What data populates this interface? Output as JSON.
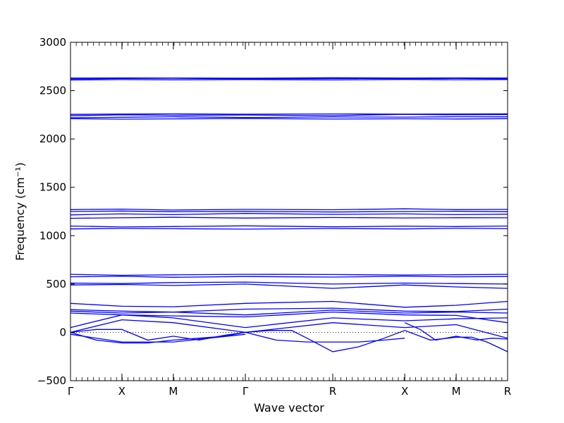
{
  "chart_data": {
    "type": "line",
    "title": "",
    "xlabel": "Wave vector",
    "ylabel": "Frequency (cm⁻¹)",
    "ylim": [
      -500,
      3000
    ],
    "yticks": [
      -500,
      0,
      500,
      1000,
      1500,
      2000,
      2500,
      3000
    ],
    "xlim": [
      0,
      8.5
    ],
    "xticks": [
      {
        "x": 0,
        "label": "Γ"
      },
      {
        "x": 1.0,
        "label": "X"
      },
      {
        "x": 2.0,
        "label": "M"
      },
      {
        "x": 3.4,
        "label": "Γ"
      },
      {
        "x": 5.1,
        "label": "R"
      },
      {
        "x": 6.5,
        "label": "X"
      },
      {
        "x": 7.5,
        "label": "M"
      },
      {
        "x": 8.5,
        "label": "R"
      }
    ],
    "zero_line": true,
    "line_color": "#0000ff",
    "series": [
      {
        "x": [
          0,
          1,
          2,
          3.4,
          5.1,
          6.5,
          7.5,
          8.5
        ],
        "y": [
          2620,
          2625,
          2628,
          2622,
          2626,
          2624,
          2627,
          2622
        ]
      },
      {
        "x": [
          0,
          1,
          2,
          3.4,
          5.1,
          6.5,
          7.5,
          8.5
        ],
        "y": [
          2630,
          2632,
          2631,
          2629,
          2633,
          2630,
          2632,
          2631
        ]
      },
      {
        "x": [
          0,
          1,
          2,
          3.4,
          5.1,
          6.5,
          7.5,
          8.5
        ],
        "y": [
          2610,
          2614,
          2612,
          2615,
          2611,
          2616,
          2613,
          2614
        ]
      },
      {
        "x": [
          0,
          1,
          2,
          3.4,
          5.1,
          6.5,
          7.5,
          8.5
        ],
        "y": [
          2240,
          2250,
          2245,
          2248,
          2242,
          2255,
          2250,
          2252
        ]
      },
      {
        "x": [
          0,
          1,
          2,
          3.4,
          5.1,
          6.5,
          7.5,
          8.5
        ],
        "y": [
          2220,
          2225,
          2230,
          2222,
          2228,
          2226,
          2230,
          2229
        ]
      },
      {
        "x": [
          0,
          1,
          2,
          3.4,
          5.1,
          6.5,
          7.5,
          8.5
        ],
        "y": [
          2210,
          2205,
          2208,
          2212,
          2206,
          2209,
          2207,
          2210
        ]
      },
      {
        "x": [
          0,
          1,
          2,
          3.4,
          5.1,
          6.5,
          7.5,
          8.5
        ],
        "y": [
          2255,
          2258,
          2260,
          2256,
          2259,
          2257,
          2258,
          2260
        ]
      },
      {
        "x": [
          0,
          1,
          2,
          3.4,
          5.1,
          6.5,
          7.5,
          8.5
        ],
        "y": [
          1270,
          1275,
          1265,
          1272,
          1268,
          1278,
          1270,
          1272
        ]
      },
      {
        "x": [
          0,
          1,
          2,
          3.4,
          5.1,
          6.5,
          7.5,
          8.5
        ],
        "y": [
          1250,
          1255,
          1248,
          1252,
          1245,
          1250,
          1252,
          1248
        ]
      },
      {
        "x": [
          0,
          1,
          2,
          3.4,
          5.1,
          6.5,
          7.5,
          8.5
        ],
        "y": [
          1215,
          1225,
          1218,
          1230,
          1220,
          1225,
          1218,
          1222
        ]
      },
      {
        "x": [
          0,
          1,
          2,
          3.4,
          5.1,
          6.5,
          7.5,
          8.5
        ],
        "y": [
          1180,
          1185,
          1190,
          1182,
          1188,
          1184,
          1186,
          1185
        ]
      },
      {
        "x": [
          0,
          1,
          2,
          3.4,
          5.1,
          6.5,
          7.5,
          8.5
        ],
        "y": [
          1100,
          1090,
          1095,
          1102,
          1092,
          1098,
          1095,
          1100
        ]
      },
      {
        "x": [
          0,
          1,
          2,
          3.4,
          5.1,
          6.5,
          7.5,
          8.5
        ],
        "y": [
          1070,
          1075,
          1072,
          1068,
          1074,
          1070,
          1076,
          1072
        ]
      },
      {
        "x": [
          0,
          1,
          2,
          3.4,
          5.1,
          6.5,
          7.5,
          8.5
        ],
        "y": [
          600,
          590,
          595,
          600,
          598,
          592,
          596,
          600
        ]
      },
      {
        "x": [
          0,
          1,
          2,
          3.4,
          5.1,
          6.5,
          7.5,
          8.5
        ],
        "y": [
          575,
          580,
          570,
          578,
          572,
          580,
          575,
          578
        ]
      },
      {
        "x": [
          0,
          1,
          2,
          3.4,
          5.1,
          6.5,
          7.5,
          8.5
        ],
        "y": [
          510,
          505,
          515,
          520,
          500,
          510,
          505,
          500
        ]
      },
      {
        "x": [
          0,
          1,
          2,
          3.4,
          5.1,
          6.5,
          7.5,
          8.5
        ],
        "y": [
          490,
          495,
          485,
          500,
          455,
          490,
          470,
          455
        ]
      },
      {
        "x": [
          0,
          1,
          2,
          3.4,
          5.1,
          6.5,
          7.5,
          8.5
        ],
        "y": [
          300,
          270,
          265,
          300,
          320,
          260,
          280,
          320
        ]
      },
      {
        "x": [
          0,
          1,
          2,
          3.4,
          5.1,
          6.5,
          7.5,
          8.5
        ],
        "y": [
          235,
          220,
          210,
          240,
          250,
          220,
          215,
          240
        ]
      },
      {
        "x": [
          0,
          1,
          2,
          3.4,
          5.1,
          6.5,
          7.5,
          8.5
        ],
        "y": [
          220,
          200,
          210,
          180,
          230,
          200,
          210,
          200
        ]
      },
      {
        "x": [
          0,
          1,
          2,
          3.4,
          5.1,
          6.5,
          7.5,
          8.5
        ],
        "y": [
          200,
          180,
          170,
          160,
          210,
          180,
          175,
          100
        ]
      },
      {
        "x": [
          0,
          1,
          2,
          3.4,
          5.1,
          6.5,
          7.5,
          8.5
        ],
        "y": [
          50,
          180,
          150,
          50,
          150,
          120,
          140,
          150
        ]
      },
      {
        "x": [
          0,
          1,
          2,
          3.4,
          5.1,
          6.5,
          7.5,
          8.5
        ],
        "y": [
          0,
          130,
          100,
          0,
          100,
          50,
          80,
          -60
        ]
      },
      {
        "x": [
          0,
          0.5,
          1,
          1.5,
          2,
          2.5,
          3.0,
          3.4
        ],
        "y": [
          0,
          30,
          30,
          -80,
          -40,
          -80,
          -30,
          0
        ]
      },
      {
        "x": [
          0,
          0.5,
          1,
          1.5,
          2,
          2.5,
          3.0,
          3.4
        ],
        "y": [
          0,
          -80,
          -110,
          -110,
          -80,
          -60,
          -40,
          0
        ]
      },
      {
        "x": [
          0,
          1,
          2,
          3.4
        ],
        "y": [
          -20,
          -100,
          -100,
          -20
        ]
      },
      {
        "x": [
          3.4,
          3.9,
          4.3,
          4.6,
          5.1,
          5.6,
          6.1,
          6.5
        ],
        "y": [
          0,
          20,
          20,
          -60,
          -200,
          -150,
          -60,
          20
        ]
      },
      {
        "x": [
          3.4,
          4.0,
          4.6,
          5.1,
          5.6,
          6.1,
          6.5
        ],
        "y": [
          0,
          -80,
          -100,
          -100,
          -100,
          -80,
          -60
        ]
      },
      {
        "x": [
          6.5,
          6.8,
          7.1,
          7.5,
          7.9,
          8.2,
          8.5
        ],
        "y": [
          100,
          30,
          -80,
          -40,
          -80,
          -60,
          -70
        ]
      },
      {
        "x": [
          6.5,
          7.0,
          7.5,
          7.8,
          8.1,
          8.5
        ],
        "y": [
          20,
          -80,
          -50,
          -50,
          -100,
          -200
        ]
      }
    ]
  }
}
